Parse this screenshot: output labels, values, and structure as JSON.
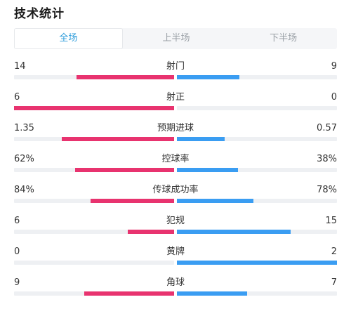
{
  "title": "技术统计",
  "tabs": [
    {
      "label": "全场",
      "active": true
    },
    {
      "label": "上半场",
      "active": false
    },
    {
      "label": "下半场",
      "active": false
    }
  ],
  "colors": {
    "home_bar": "#e8336f",
    "away_bar": "#3a9df2",
    "active_tab": "#2d9cdb"
  },
  "stats": [
    {
      "label": "射门",
      "home": "14",
      "away": "9",
      "home_share": 0.61,
      "away_share": 0.39
    },
    {
      "label": "射正",
      "home": "6",
      "away": "0",
      "home_share": 1.0,
      "away_share": 0.0
    },
    {
      "label": "预期进球",
      "home": "1.35",
      "away": "0.57",
      "home_share": 0.7,
      "away_share": 0.3
    },
    {
      "label": "控球率",
      "home": "62%",
      "away": "38%",
      "home_share": 0.62,
      "away_share": 0.38
    },
    {
      "label": "传球成功率",
      "home": "84%",
      "away": "78%",
      "home_share": 0.52,
      "away_share": 0.48
    },
    {
      "label": "犯规",
      "home": "6",
      "away": "15",
      "home_share": 0.29,
      "away_share": 0.71
    },
    {
      "label": "黄牌",
      "home": "0",
      "away": "2",
      "home_share": 0.0,
      "away_share": 1.0
    },
    {
      "label": "角球",
      "home": "9",
      "away": "7",
      "home_share": 0.56,
      "away_share": 0.44
    }
  ]
}
